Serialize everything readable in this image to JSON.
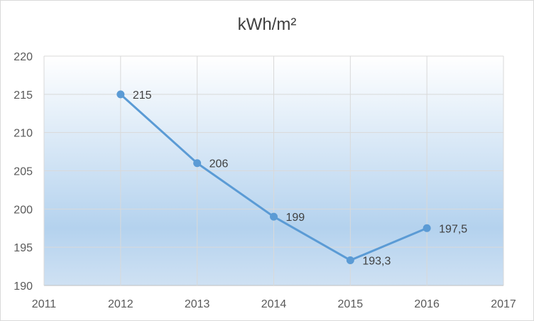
{
  "chart_data": {
    "type": "line",
    "title": "kWh/m²",
    "x_ticks": [
      "2011",
      "2012",
      "2013",
      "2014",
      "2015",
      "2016",
      "2017"
    ],
    "x": [
      2012,
      2013,
      2014,
      2015,
      2016
    ],
    "values": [
      215,
      206,
      199,
      193.3,
      197.5
    ],
    "data_labels": [
      "215",
      "206",
      "199",
      "193,3",
      "197,5"
    ],
    "xlim": [
      2011,
      2017
    ],
    "ylim": [
      190,
      220
    ],
    "y_ticks": [
      "190",
      "195",
      "200",
      "205",
      "210",
      "215",
      "220"
    ],
    "grid": true,
    "line_color": "#5b9bd5",
    "plot_gradient": [
      "#ffffff",
      "#b4d2ee"
    ]
  }
}
